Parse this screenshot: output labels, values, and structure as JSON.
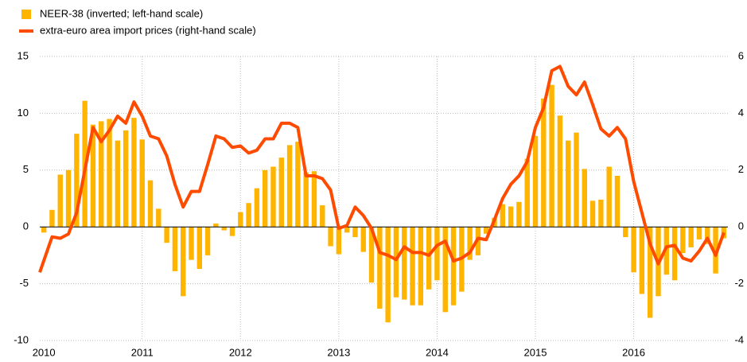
{
  "chart_data": {
    "type": "bar_line",
    "categories": [
      "2010",
      null,
      null,
      null,
      null,
      null,
      null,
      null,
      null,
      null,
      null,
      null,
      "2011",
      null,
      null,
      null,
      null,
      null,
      null,
      null,
      null,
      null,
      null,
      null,
      "2012",
      null,
      null,
      null,
      null,
      null,
      null,
      null,
      null,
      null,
      null,
      null,
      "2013",
      null,
      null,
      null,
      null,
      null,
      null,
      null,
      null,
      null,
      null,
      null,
      "2014",
      null,
      null,
      null,
      null,
      null,
      null,
      null,
      null,
      null,
      null,
      null,
      "2015",
      null,
      null,
      null,
      null,
      null,
      null,
      null,
      null,
      null,
      null,
      null,
      "2016",
      null,
      null,
      null,
      null,
      null,
      null,
      null,
      null,
      null,
      null,
      null
    ],
    "series": [
      {
        "name": "NEER-38 (inverted; left-hand scale)",
        "type": "bar",
        "color": "#FFB400",
        "values": [
          -0.5,
          1.5,
          4.6,
          5.0,
          8.2,
          11.1,
          9.0,
          9.3,
          9.5,
          7.6,
          8.5,
          9.6,
          7.7,
          4.1,
          1.6,
          -1.4,
          -3.9,
          -6.1,
          -2.9,
          -3.7,
          -2.5,
          0.3,
          -0.3,
          -0.8,
          1.3,
          2.1,
          3.4,
          5.0,
          5.3,
          6.1,
          7.2,
          7.5,
          4.8,
          4.9,
          1.9,
          -1.7,
          -2.4,
          -0.5,
          -0.9,
          -2.2,
          -4.9,
          -7.2,
          -8.4,
          -6.2,
          -6.4,
          -6.9,
          -6.9,
          -5.5,
          -4.7,
          -7.5,
          -6.9,
          -5.7,
          -2.9,
          -2.5,
          -0.6,
          0.8,
          2.0,
          1.8,
          2.2,
          6.0,
          8.0,
          11.3,
          12.5,
          9.8,
          7.6,
          8.3,
          5.1,
          2.3,
          2.4,
          5.3,
          4.5,
          -0.9,
          -4.0,
          -5.9,
          -8.0,
          -6.1,
          -4.2,
          -4.7,
          -2.3,
          -1.8,
          -1.1,
          -1.5,
          -4.1,
          -1.0
        ]
      },
      {
        "name": "extra-euro area import prices (right-hand scale)",
        "type": "line",
        "axis": "y2",
        "color": "#FF4B00",
        "values": [
          -1.6,
          -0.35,
          -0.4,
          -0.25,
          0.5,
          2.0,
          3.5,
          3.0,
          3.4,
          3.9,
          3.65,
          4.4,
          3.9,
          3.2,
          3.1,
          2.5,
          1.5,
          0.7,
          1.25,
          1.25,
          2.2,
          3.2,
          3.1,
          2.8,
          2.85,
          2.6,
          2.7,
          3.1,
          3.1,
          3.65,
          3.65,
          3.5,
          1.8,
          1.8,
          1.7,
          1.3,
          -0.05,
          0.05,
          0.7,
          0.4,
          -0.05,
          -0.9,
          -1.0,
          -1.15,
          -0.7,
          -0.9,
          -0.9,
          -1.0,
          -0.65,
          -0.5,
          -1.2,
          -1.1,
          -0.9,
          -0.4,
          -0.45,
          0.25,
          1.0,
          1.5,
          1.8,
          2.3,
          3.5,
          4.2,
          5.5,
          5.65,
          4.95,
          4.65,
          5.1,
          4.3,
          3.45,
          3.2,
          3.5,
          3.1,
          1.6,
          0.5,
          -0.6,
          -1.3,
          -0.7,
          -0.65,
          -1.1,
          -1.2,
          -0.85,
          -0.4,
          -1.0,
          -0.2
        ]
      }
    ],
    "ylim": [
      -10,
      15
    ],
    "yticks": [
      -10,
      -5,
      0,
      5,
      10,
      15
    ],
    "y2lim": [
      -4,
      6
    ],
    "y2ticks": [
      -4,
      -2,
      0,
      2,
      4,
      6
    ],
    "grid": true,
    "legend": "top-left"
  }
}
